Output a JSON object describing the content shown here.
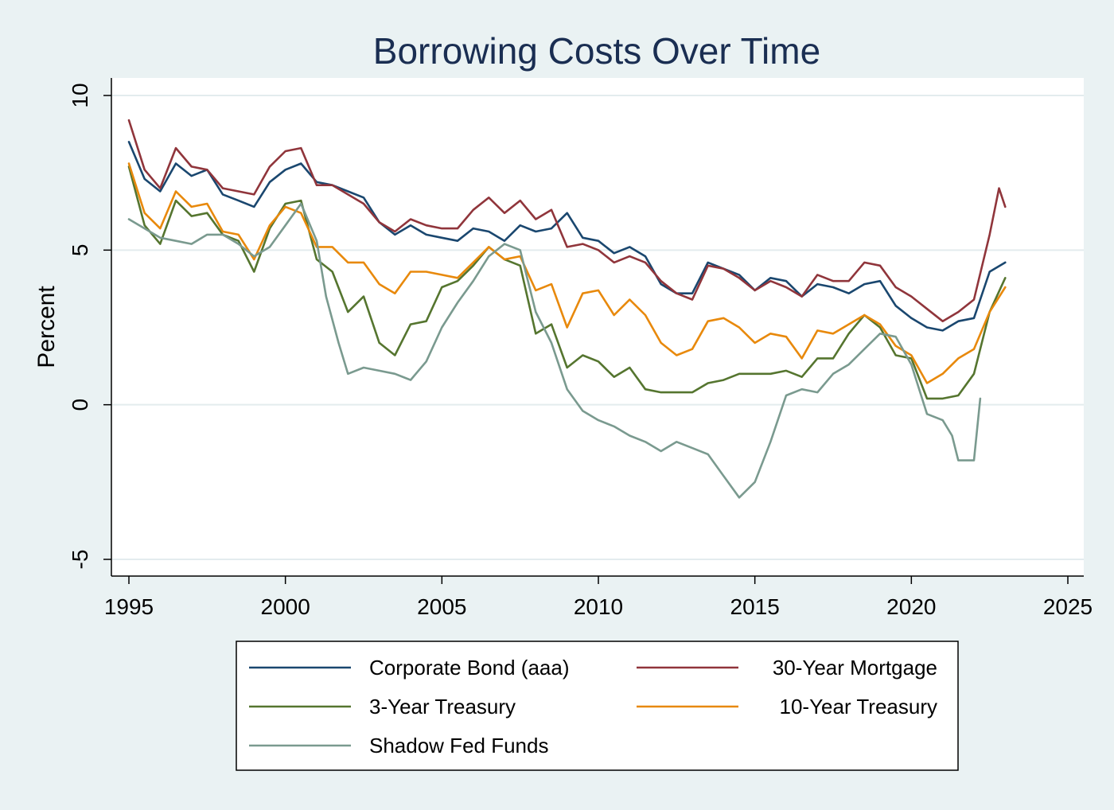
{
  "chart_data": {
    "type": "line",
    "title": "Borrowing Costs Over Time",
    "xlabel": "",
    "ylabel": "Percent",
    "xlim": [
      1995,
      2025
    ],
    "ylim": [
      -5,
      10
    ],
    "xticks": [
      1995,
      2000,
      2005,
      2010,
      2015,
      2020,
      2025
    ],
    "xtick_labels": [
      "1995",
      "2000",
      "2005",
      "2010",
      "2015",
      "2020",
      "2025"
    ],
    "yticks": [
      -5,
      0,
      5,
      10
    ],
    "ytick_labels": [
      "-5",
      "0",
      "5",
      "10"
    ],
    "grid": "horizontal",
    "legend_position": "bottom",
    "colors": {
      "background": "#eaf2f3",
      "plot_background": "#ffffff",
      "gridline": "#e3ecee",
      "title": "#1a2e52"
    },
    "series": [
      {
        "name": "Corporate Bond (aaa)",
        "color": "#1a476f",
        "x": [
          1995.0,
          1995.5,
          1996.0,
          1996.5,
          1997.0,
          1997.5,
          1998.0,
          1998.5,
          1999.0,
          1999.5,
          2000.0,
          2000.5,
          2001.0,
          2001.5,
          2002.0,
          2002.5,
          2003.0,
          2003.5,
          2004.0,
          2004.5,
          2005.0,
          2005.5,
          2006.0,
          2006.5,
          2007.0,
          2007.5,
          2008.0,
          2008.5,
          2009.0,
          2009.5,
          2010.0,
          2010.5,
          2011.0,
          2011.5,
          2012.0,
          2012.5,
          2013.0,
          2013.5,
          2014.0,
          2014.5,
          2015.0,
          2015.5,
          2016.0,
          2016.5,
          2017.0,
          2017.5,
          2018.0,
          2018.5,
          2019.0,
          2019.5,
          2020.0,
          2020.5,
          2021.0,
          2021.5,
          2022.0,
          2022.5,
          2023.0
        ],
        "y": [
          8.5,
          7.3,
          6.9,
          7.8,
          7.4,
          7.6,
          6.8,
          6.6,
          6.4,
          7.2,
          7.6,
          7.8,
          7.2,
          7.1,
          6.9,
          6.7,
          5.9,
          5.5,
          5.8,
          5.5,
          5.4,
          5.3,
          5.7,
          5.6,
          5.3,
          5.8,
          5.6,
          5.7,
          6.2,
          5.4,
          5.3,
          4.9,
          5.1,
          4.8,
          3.9,
          3.6,
          3.6,
          4.6,
          4.4,
          4.2,
          3.7,
          4.1,
          4.0,
          3.5,
          3.9,
          3.8,
          3.6,
          3.9,
          4.0,
          3.2,
          2.8,
          2.5,
          2.4,
          2.7,
          2.8,
          4.3,
          4.6
        ]
      },
      {
        "name": "30-Year Mortgage",
        "color": "#90353b",
        "x": [
          1995.0,
          1995.5,
          1996.0,
          1996.5,
          1997.0,
          1997.5,
          1998.0,
          1998.5,
          1999.0,
          1999.5,
          2000.0,
          2000.5,
          2001.0,
          2001.5,
          2002.0,
          2002.5,
          2003.0,
          2003.5,
          2004.0,
          2004.5,
          2005.0,
          2005.5,
          2006.0,
          2006.5,
          2007.0,
          2007.5,
          2008.0,
          2008.5,
          2009.0,
          2009.5,
          2010.0,
          2010.5,
          2011.0,
          2011.5,
          2012.0,
          2012.5,
          2013.0,
          2013.5,
          2014.0,
          2014.5,
          2015.0,
          2015.5,
          2016.0,
          2016.5,
          2017.0,
          2017.5,
          2018.0,
          2018.5,
          2019.0,
          2019.5,
          2020.0,
          2020.5,
          2021.0,
          2021.5,
          2022.0,
          2022.5,
          2022.8,
          2023.0
        ],
        "y": [
          9.2,
          7.6,
          7.0,
          8.3,
          7.7,
          7.6,
          7.0,
          6.9,
          6.8,
          7.7,
          8.2,
          8.3,
          7.1,
          7.1,
          6.8,
          6.5,
          5.9,
          5.6,
          6.0,
          5.8,
          5.7,
          5.7,
          6.3,
          6.7,
          6.2,
          6.6,
          6.0,
          6.3,
          5.1,
          5.2,
          5.0,
          4.6,
          4.8,
          4.6,
          4.0,
          3.6,
          3.4,
          4.5,
          4.4,
          4.1,
          3.7,
          4.0,
          3.8,
          3.5,
          4.2,
          4.0,
          4.0,
          4.6,
          4.5,
          3.8,
          3.5,
          3.1,
          2.7,
          3.0,
          3.4,
          5.5,
          7.0,
          6.4
        ]
      },
      {
        "name": "3-Year Treasury",
        "color": "#55752f",
        "x": [
          1995.0,
          1995.5,
          1996.0,
          1996.5,
          1997.0,
          1997.5,
          1998.0,
          1998.5,
          1999.0,
          1999.5,
          2000.0,
          2000.5,
          2001.0,
          2001.5,
          2002.0,
          2002.5,
          2003.0,
          2003.5,
          2004.0,
          2004.5,
          2005.0,
          2005.5,
          2006.0,
          2006.5,
          2007.0,
          2007.5,
          2008.0,
          2008.5,
          2009.0,
          2009.5,
          2010.0,
          2010.5,
          2011.0,
          2011.5,
          2012.0,
          2012.5,
          2013.0,
          2013.5,
          2014.0,
          2014.5,
          2015.0,
          2015.5,
          2016.0,
          2016.5,
          2017.0,
          2017.5,
          2018.0,
          2018.5,
          2019.0,
          2019.5,
          2020.0,
          2020.5,
          2021.0,
          2021.5,
          2022.0,
          2022.5,
          2023.0
        ],
        "y": [
          7.7,
          5.8,
          5.2,
          6.6,
          6.1,
          6.2,
          5.5,
          5.3,
          4.3,
          5.7,
          6.5,
          6.6,
          4.7,
          4.3,
          3.0,
          3.5,
          2.0,
          1.6,
          2.6,
          2.7,
          3.8,
          4.0,
          4.5,
          5.1,
          4.7,
          4.5,
          2.3,
          2.6,
          1.2,
          1.6,
          1.4,
          0.9,
          1.2,
          0.5,
          0.4,
          0.4,
          0.4,
          0.7,
          0.8,
          1.0,
          1.0,
          1.0,
          1.1,
          0.9,
          1.5,
          1.5,
          2.3,
          2.9,
          2.5,
          1.6,
          1.5,
          0.2,
          0.2,
          0.3,
          1.0,
          3.0,
          4.1
        ]
      },
      {
        "name": "10-Year Treasury",
        "color": "#e8890c",
        "x": [
          1995.0,
          1995.5,
          1996.0,
          1996.5,
          1997.0,
          1997.5,
          1998.0,
          1998.5,
          1999.0,
          1999.5,
          2000.0,
          2000.5,
          2001.0,
          2001.5,
          2002.0,
          2002.5,
          2003.0,
          2003.5,
          2004.0,
          2004.5,
          2005.0,
          2005.5,
          2006.0,
          2006.5,
          2007.0,
          2007.5,
          2008.0,
          2008.5,
          2009.0,
          2009.5,
          2010.0,
          2010.5,
          2011.0,
          2011.5,
          2012.0,
          2012.5,
          2013.0,
          2013.5,
          2014.0,
          2014.5,
          2015.0,
          2015.5,
          2016.0,
          2016.5,
          2017.0,
          2017.5,
          2018.0,
          2018.5,
          2019.0,
          2019.5,
          2020.0,
          2020.5,
          2021.0,
          2021.5,
          2022.0,
          2022.5,
          2023.0
        ],
        "y": [
          7.8,
          6.2,
          5.7,
          6.9,
          6.4,
          6.5,
          5.6,
          5.5,
          4.7,
          5.8,
          6.4,
          6.2,
          5.1,
          5.1,
          4.6,
          4.6,
          3.9,
          3.6,
          4.3,
          4.3,
          4.2,
          4.1,
          4.6,
          5.1,
          4.7,
          4.8,
          3.7,
          3.9,
          2.5,
          3.6,
          3.7,
          2.9,
          3.4,
          2.9,
          2.0,
          1.6,
          1.8,
          2.7,
          2.8,
          2.5,
          2.0,
          2.3,
          2.2,
          1.5,
          2.4,
          2.3,
          2.6,
          2.9,
          2.6,
          1.9,
          1.6,
          0.7,
          1.0,
          1.5,
          1.8,
          3.0,
          3.8
        ]
      },
      {
        "name": "Shadow Fed Funds",
        "color": "#7a9a8f",
        "x": [
          1995.0,
          1995.5,
          1996.0,
          1996.5,
          1997.0,
          1997.5,
          1998.0,
          1998.5,
          1999.0,
          1999.5,
          2000.0,
          2000.5,
          2001.0,
          2001.3,
          2001.7,
          2002.0,
          2002.5,
          2003.0,
          2003.5,
          2004.0,
          2004.5,
          2005.0,
          2005.5,
          2006.0,
          2006.5,
          2007.0,
          2007.5,
          2008.0,
          2008.5,
          2009.0,
          2009.5,
          2010.0,
          2010.5,
          2011.0,
          2011.5,
          2012.0,
          2012.5,
          2013.0,
          2013.5,
          2014.0,
          2014.5,
          2015.0,
          2015.5,
          2016.0,
          2016.5,
          2017.0,
          2017.5,
          2018.0,
          2018.5,
          2019.0,
          2019.5,
          2020.0,
          2020.5,
          2021.0,
          2021.3,
          2021.5,
          2022.0,
          2022.2
        ],
        "y": [
          6.0,
          5.7,
          5.4,
          5.3,
          5.2,
          5.5,
          5.5,
          5.2,
          4.8,
          5.1,
          5.8,
          6.5,
          5.3,
          3.5,
          2.0,
          1.0,
          1.2,
          1.1,
          1.0,
          0.8,
          1.4,
          2.5,
          3.3,
          4.0,
          4.8,
          5.2,
          5.0,
          3.0,
          2.0,
          0.5,
          -0.2,
          -0.5,
          -0.7,
          -1.0,
          -1.2,
          -1.5,
          -1.2,
          -1.4,
          -1.6,
          -2.3,
          -3.0,
          -2.5,
          -1.2,
          0.3,
          0.5,
          0.4,
          1.0,
          1.3,
          1.8,
          2.3,
          2.2,
          1.3,
          -0.3,
          -0.5,
          -1.0,
          -1.8,
          -1.8,
          0.2
        ]
      }
    ]
  }
}
